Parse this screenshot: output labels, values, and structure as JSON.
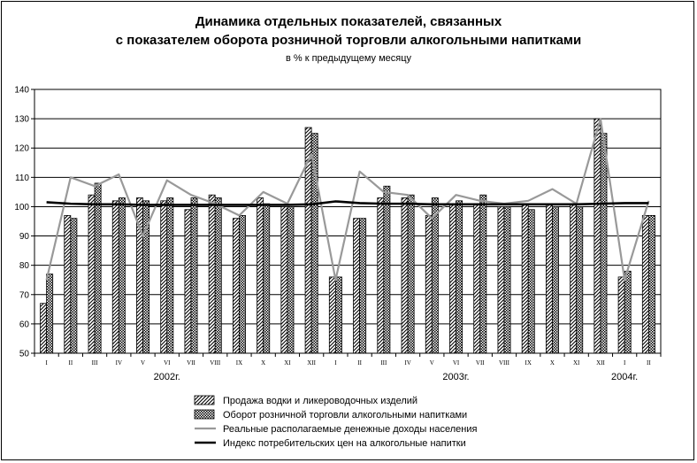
{
  "chart_data": {
    "type": "bar",
    "title_line1": "Динамика отдельных показателей, связанных",
    "title_line2": "с показателем оборота розничной торговли алкогольными напитками",
    "subtitle": "в % к предыдущему месяцу",
    "ylim": [
      50,
      140
    ],
    "yticks": [
      50,
      60,
      70,
      80,
      90,
      100,
      110,
      120,
      130,
      140
    ],
    "grid": true,
    "legend_position": "bottom",
    "categories": [
      "I",
      "II",
      "III",
      "IV",
      "V",
      "VI",
      "VII",
      "VIII",
      "IX",
      "X",
      "XI",
      "XII",
      "I",
      "II",
      "III",
      "IV",
      "V",
      "VI",
      "VII",
      "VIII",
      "IX",
      "X",
      "XI",
      "XII",
      "I",
      "II"
    ],
    "year_labels": [
      {
        "text": "2002г.",
        "at_category": 5.5
      },
      {
        "text": "2003г.",
        "at_category": 17.5
      },
      {
        "text": "2004г.",
        "at_category": 24.5
      }
    ],
    "series": [
      {
        "name": "Продажа водки и ликероводочных изделий",
        "kind": "bar",
        "pattern": "diagonal-hatch",
        "values": [
          67,
          97,
          104,
          102,
          103,
          102,
          99,
          104,
          96,
          103,
          100,
          127,
          76,
          96,
          103,
          103,
          97,
          101,
          101,
          100,
          101,
          101,
          101,
          130,
          76,
          97
        ]
      },
      {
        "name": "Оборот розничной торговли алкогольными напитками",
        "kind": "bar",
        "pattern": "checker",
        "values": [
          77,
          96,
          108,
          103,
          102,
          103,
          103,
          103,
          97,
          101,
          100,
          125,
          76,
          96,
          107,
          104,
          103,
          102,
          104,
          100,
          99,
          100,
          100,
          125,
          78,
          97
        ]
      },
      {
        "name": "Реальные располагаемые денежные доходы населения",
        "kind": "line",
        "color": "#999999",
        "values": [
          75,
          110,
          107,
          111,
          90,
          109,
          104,
          101,
          97,
          105,
          101,
          118,
          75,
          112,
          105,
          104,
          96,
          104,
          102,
          101,
          102,
          106,
          101,
          130,
          75,
          102
        ]
      },
      {
        "name": "Индекс потребительских цен на алкогольные напитки",
        "kind": "line",
        "color": "#000000",
        "values": [
          101.5,
          101.0,
          100.8,
          100.8,
          100.6,
          100.6,
          100.6,
          100.6,
          100.6,
          100.6,
          100.6,
          100.8,
          101.8,
          101.2,
          101.0,
          101.0,
          100.8,
          100.8,
          100.8,
          100.8,
          100.8,
          100.8,
          100.8,
          101.0,
          101.2,
          101.2
        ]
      }
    ]
  }
}
